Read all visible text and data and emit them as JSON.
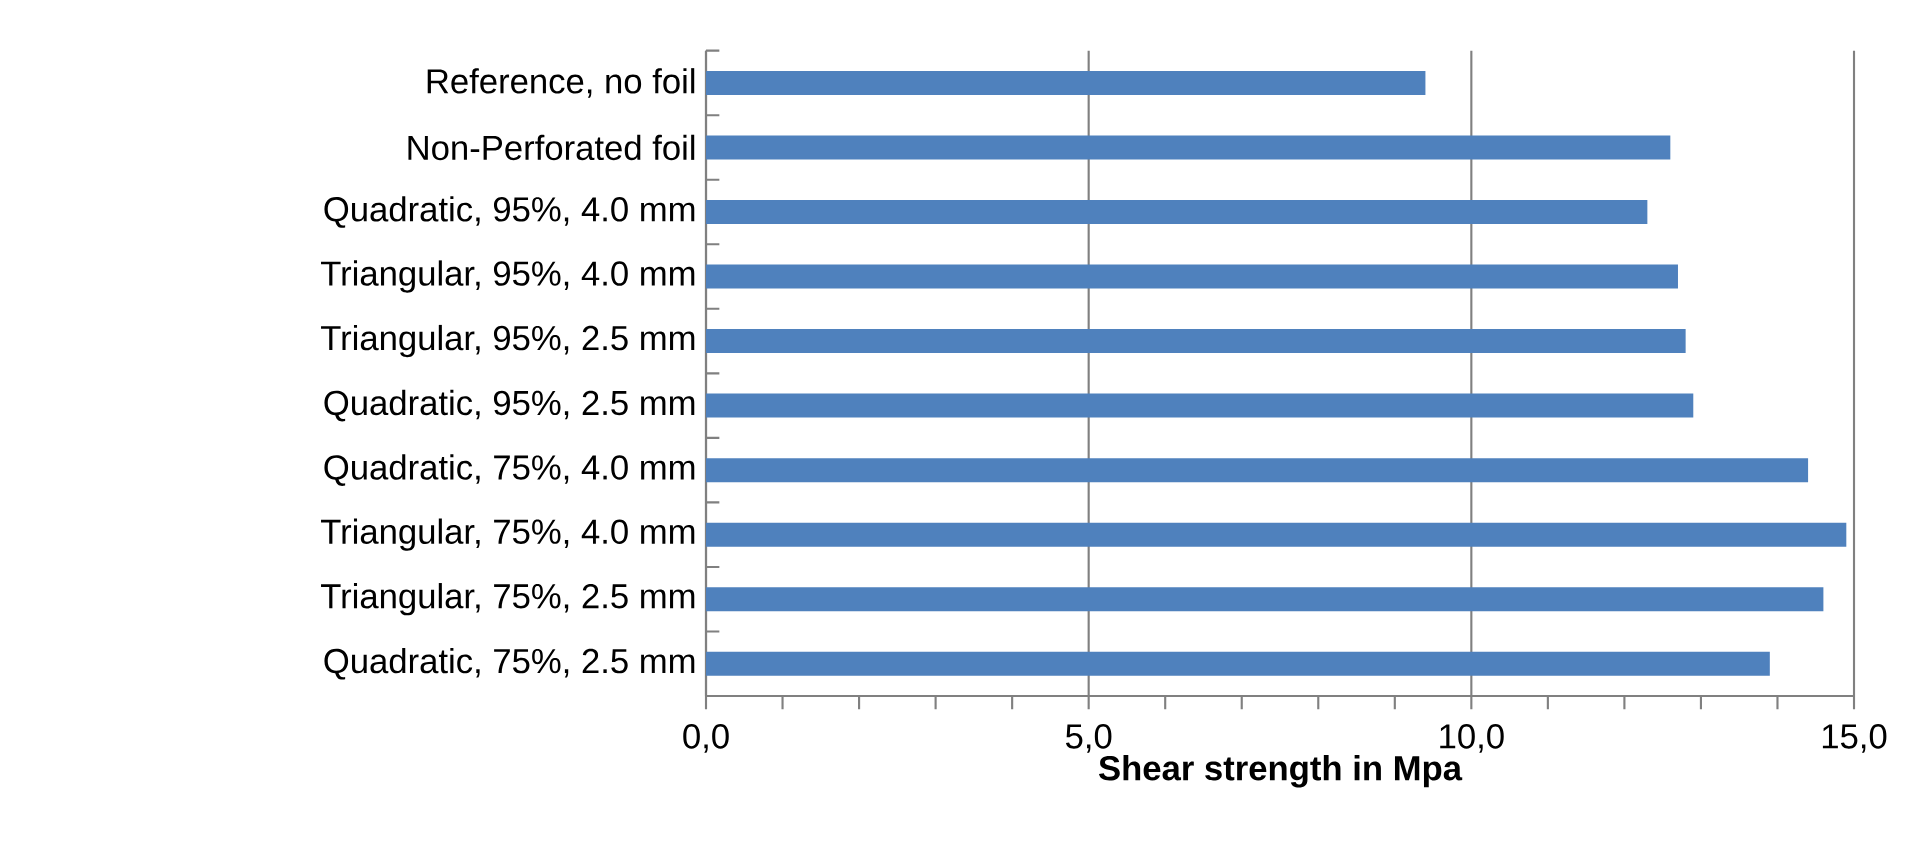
{
  "chart_data": {
    "type": "bar",
    "orientation": "horizontal",
    "xlabel": "Shear strength in Mpa",
    "categories": [
      "Reference, no foil",
      "Non-Perforated foil",
      "Quadratic, 95%, 4.0 mm",
      "Triangular, 95%, 4.0 mm",
      "Triangular, 95%, 2.5 mm",
      "Quadratic, 95%, 2.5 mm",
      "Quadratic, 75%, 4.0 mm",
      "Triangular, 75%, 4.0 mm",
      "Triangular, 75%, 2.5 mm",
      "Quadratic, 75%, 2.5 mm"
    ],
    "values": [
      9.4,
      12.6,
      12.3,
      12.7,
      12.8,
      12.9,
      14.4,
      14.9,
      14.6,
      13.9
    ],
    "color": "#4f81bd",
    "xlim": [
      0,
      15
    ],
    "xticks": [
      {
        "value": 0,
        "label": "0,0"
      },
      {
        "value": 5,
        "label": "5,0"
      },
      {
        "value": 10,
        "label": "10,0"
      },
      {
        "value": 15,
        "label": "15,0"
      }
    ],
    "grid": "x"
  }
}
